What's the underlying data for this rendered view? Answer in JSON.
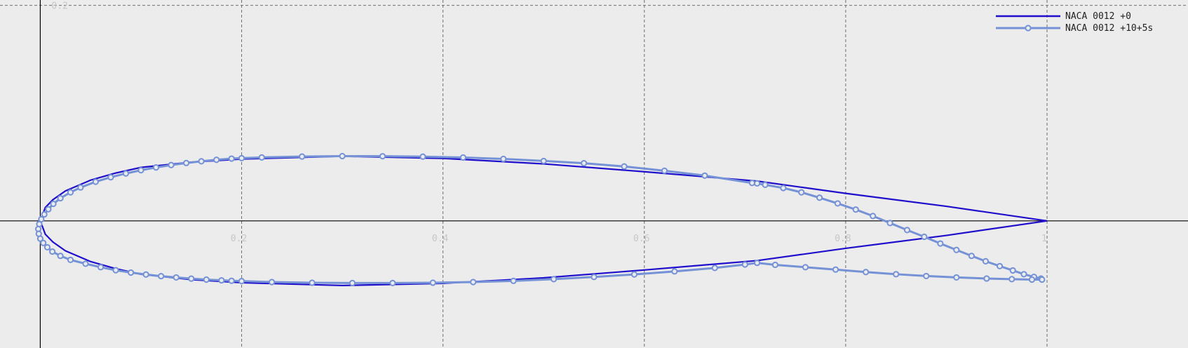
{
  "chart_data": {
    "type": "line",
    "grid": true,
    "legend_position": "top-right",
    "xlim": [
      -0.04,
      1.14
    ],
    "ylim": [
      -0.118,
      0.205
    ],
    "x_ticks": [
      {
        "value": 0.2,
        "label": "0.2"
      },
      {
        "value": 0.4,
        "label": "0.4"
      },
      {
        "value": 0.6,
        "label": "0.6"
      },
      {
        "value": 0.8,
        "label": "0.8"
      },
      {
        "value": 1.0,
        "label": "1"
      }
    ],
    "y_ticks": [
      {
        "value": 0.2,
        "label": "0.2"
      }
    ],
    "colors": {
      "background": "#ececec",
      "grid": "#6e6e6e",
      "axis": "#000000",
      "series_0": "#1f0ecc",
      "series_1": "#7592d6"
    },
    "series": [
      {
        "name": "NACA 0012 +0",
        "color": "#1f0ecc",
        "marker": "none",
        "x": [
          1.0,
          0.9,
          0.8,
          0.712,
          0.6,
          0.5,
          0.4,
          0.3,
          0.2,
          0.15,
          0.1,
          0.075,
          0.05,
          0.025,
          0.0125,
          0.005,
          0.0,
          0.005,
          0.0125,
          0.025,
          0.05,
          0.075,
          0.1,
          0.15,
          0.2,
          0.3,
          0.4,
          0.5,
          0.6,
          0.712,
          0.8,
          0.9,
          1.0
        ],
        "y": [
          0.0,
          0.0135,
          0.0255,
          0.0369,
          0.0456,
          0.0529,
          0.058,
          0.06,
          0.0574,
          0.0545,
          0.0496,
          0.0444,
          0.0378,
          0.0278,
          0.0196,
          0.0124,
          0.0,
          -0.0124,
          -0.0196,
          -0.0278,
          -0.0378,
          -0.0444,
          -0.0496,
          -0.0545,
          -0.0574,
          -0.06,
          -0.058,
          -0.0529,
          -0.0456,
          -0.0369,
          -0.0255,
          -0.0135,
          0.0
        ]
      },
      {
        "name": "NACA 0012 +10+5s",
        "color": "#7592d6",
        "marker": "circle",
        "x": [
          0.994,
          0.987,
          0.977,
          0.966,
          0.953,
          0.939,
          0.925,
          0.91,
          0.894,
          0.878,
          0.861,
          0.844,
          0.827,
          0.81,
          0.792,
          0.774,
          0.756,
          0.738,
          0.72,
          0.712,
          0.707,
          0.66,
          0.62,
          0.58,
          0.54,
          0.5,
          0.46,
          0.42,
          0.38,
          0.34,
          0.3,
          0.26,
          0.22,
          0.2,
          0.19,
          0.175,
          0.16,
          0.145,
          0.13,
          0.115,
          0.1,
          0.085,
          0.07,
          0.055,
          0.04,
          0.03,
          0.02,
          0.013,
          0.008,
          0.004,
          0.001,
          -0.001,
          -0.002,
          -0.0015,
          0.0,
          0.003,
          0.007,
          0.012,
          0.02,
          0.03,
          0.045,
          0.06,
          0.075,
          0.09,
          0.105,
          0.12,
          0.135,
          0.15,
          0.165,
          0.18,
          0.19,
          0.2,
          0.23,
          0.27,
          0.31,
          0.35,
          0.39,
          0.43,
          0.47,
          0.51,
          0.55,
          0.59,
          0.63,
          0.67,
          0.7,
          0.712,
          0.73,
          0.76,
          0.79,
          0.82,
          0.85,
          0.88,
          0.91,
          0.94,
          0.965,
          0.985,
          0.995
        ],
        "y": [
          -0.0535,
          -0.052,
          -0.0495,
          -0.046,
          -0.042,
          -0.0375,
          -0.0325,
          -0.027,
          -0.021,
          -0.0148,
          -0.0085,
          -0.002,
          0.0045,
          0.0105,
          0.0162,
          0.0215,
          0.0265,
          0.0305,
          0.0335,
          0.0348,
          0.0352,
          0.042,
          0.0465,
          0.0505,
          0.0535,
          0.0556,
          0.0575,
          0.0588,
          0.0596,
          0.06,
          0.0601,
          0.0597,
          0.0589,
          0.0582,
          0.0578,
          0.0567,
          0.0553,
          0.0537,
          0.0518,
          0.0496,
          0.047,
          0.044,
          0.0405,
          0.0363,
          0.031,
          0.0265,
          0.021,
          0.0158,
          0.0108,
          0.006,
          0.0015,
          -0.003,
          -0.0075,
          -0.012,
          -0.0165,
          -0.0205,
          -0.0245,
          -0.0285,
          -0.0325,
          -0.0362,
          -0.0398,
          -0.043,
          -0.0458,
          -0.048,
          -0.0498,
          -0.0513,
          -0.0525,
          -0.0536,
          -0.0545,
          -0.0552,
          -0.0556,
          -0.0559,
          -0.0568,
          -0.0574,
          -0.0577,
          -0.0577,
          -0.0574,
          -0.0568,
          -0.0557,
          -0.0541,
          -0.0521,
          -0.0497,
          -0.0469,
          -0.0437,
          -0.0405,
          -0.039,
          -0.0408,
          -0.043,
          -0.0452,
          -0.0475,
          -0.0495,
          -0.0512,
          -0.0525,
          -0.0535,
          -0.0541,
          -0.0545,
          -0.0545
        ]
      }
    ]
  }
}
